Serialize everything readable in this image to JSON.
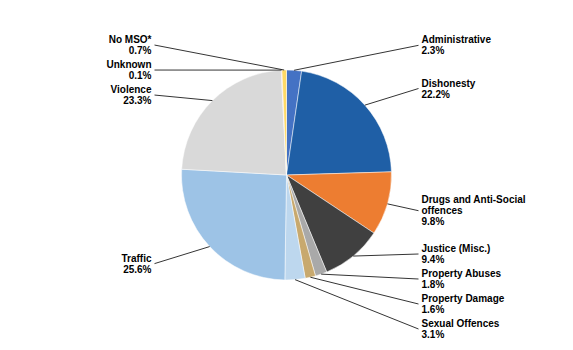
{
  "chart_data": {
    "type": "pie",
    "categories": [
      "Administrative",
      "Dishonesty",
      "Drugs and Anti-Social\noffences",
      "Justice (Misc.)",
      "Property Abuses",
      "Property Damage",
      "Sexual Offences",
      "Traffic",
      "Violence",
      "Unknown",
      "No MSO*"
    ],
    "values": [
      2.3,
      22.2,
      9.8,
      9.4,
      1.8,
      1.6,
      3.1,
      25.6,
      23.3,
      0.1,
      0.7
    ],
    "value_labels": [
      "2.3%",
      "22.2%",
      "9.8%",
      "9.4%",
      "1.8%",
      "1.6%",
      "3.1%",
      "25.6%",
      "23.3%",
      "0.1%",
      "0.7%"
    ],
    "colors": [
      "#4472C4",
      "#1F5FA6",
      "#ED7D31",
      "#404040",
      "#A9A9A9",
      "#C8A96E",
      "#BDD7EE",
      "#9DC3E6",
      "#D9D9D9",
      "#E2AFCA",
      "#FFD966"
    ],
    "data_labels": true
  }
}
